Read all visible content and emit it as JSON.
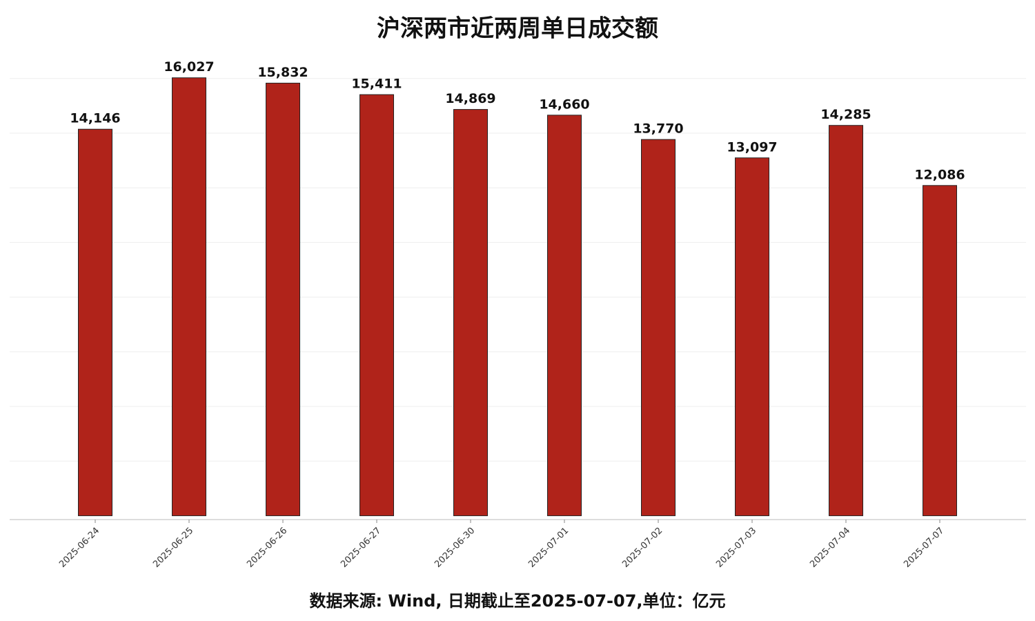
{
  "chart_data": {
    "type": "bar",
    "title": "沪深两市近两周单日成交额",
    "footnote": "数据来源: Wind, 日期截止至2025-07-07,单位：亿元",
    "categories": [
      "2025-06-24",
      "2025-06-25",
      "2025-06-26",
      "2025-06-27",
      "2025-06-30",
      "2025-07-01",
      "2025-07-02",
      "2025-07-03",
      "2025-07-04",
      "2025-07-07"
    ],
    "values": [
      14146,
      16027,
      15832,
      15411,
      14869,
      14660,
      13770,
      13097,
      14285,
      12086
    ],
    "value_labels": [
      "14,146",
      "16,027",
      "15,832",
      "15,411",
      "14,869",
      "14,660",
      "13,770",
      "13,097",
      "14,285",
      "12,086"
    ],
    "color": "#b0231a",
    "ylim": [
      -140,
      16500
    ],
    "yticks": [
      2000,
      4000,
      6000,
      8000,
      10000,
      12000,
      14000,
      16000
    ],
    "show_ytick_labels": false,
    "grid": true
  }
}
